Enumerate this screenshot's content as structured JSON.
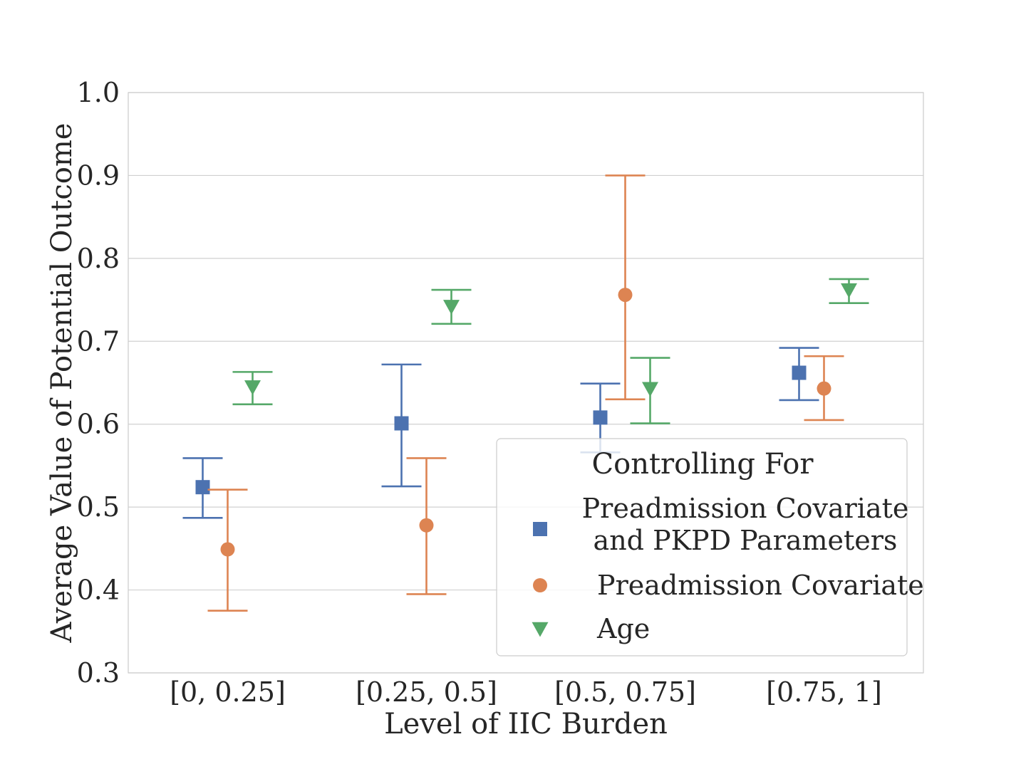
{
  "colors": {
    "series": [
      "#4c72b0",
      "#dd8452",
      "#55a868"
    ],
    "grid": "#d0d0d0",
    "axes_frame": "#cccccc",
    "text": "#262626"
  },
  "chart_data": {
    "type": "scatter",
    "title": "",
    "xlabel": "Level of IIC Burden",
    "ylabel": "Average Value of Potential Outcome",
    "categories": [
      "[0, 0.25]",
      "[0.25, 0.5]",
      "[0.5, 0.75]",
      "[0.75, 1]"
    ],
    "ylim": [
      0.3,
      1.0
    ],
    "yticks": [
      "0.3",
      "0.4",
      "0.5",
      "0.6",
      "0.7",
      "0.8",
      "0.9",
      "1.0"
    ],
    "grid": "horizontal",
    "legend": {
      "title": "Controlling For",
      "placement": "lower right",
      "entries": [
        {
          "line1": "Preadmission Covariate",
          "line2": "and PKPD Parameters"
        },
        {
          "line1": "Preadmission Covariate",
          "line2": ""
        },
        {
          "line1": "Age",
          "line2": ""
        }
      ]
    },
    "series": [
      {
        "name": "Preadmission Covariate and PKPD Parameters",
        "marker": "square",
        "values": [
          0.524,
          0.601,
          0.608,
          0.662
        ],
        "lower": [
          0.487,
          0.525,
          0.566,
          0.629
        ],
        "upper": [
          0.559,
          0.672,
          0.649,
          0.692
        ]
      },
      {
        "name": "Preadmission Covariate",
        "marker": "circle",
        "values": [
          0.449,
          0.478,
          0.756,
          0.643
        ],
        "lower": [
          0.375,
          0.395,
          0.63,
          0.605
        ],
        "upper": [
          0.521,
          0.559,
          0.9,
          0.682
        ]
      },
      {
        "name": "Age",
        "marker": "triangle-down",
        "values": [
          0.645,
          0.742,
          0.643,
          0.762
        ],
        "lower": [
          0.624,
          0.721,
          0.601,
          0.746
        ],
        "upper": [
          0.663,
          0.762,
          0.68,
          0.775
        ]
      }
    ]
  }
}
